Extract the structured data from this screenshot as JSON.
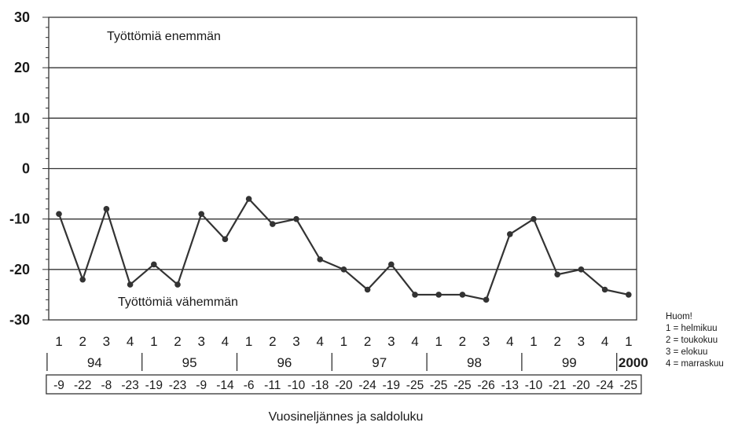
{
  "chart_data": {
    "type": "line",
    "title": "",
    "xlabel": "Vuosineljännes ja saldoluku",
    "ylabel": "",
    "ylim": [
      -30,
      30
    ],
    "yticks": [
      "30",
      "20",
      "10",
      "0",
      "-10",
      "-20",
      "-30"
    ],
    "grid": "horizontal at 20, 10, 0, -10, -20",
    "annotations": {
      "upper": "Työttömiä enemmän",
      "lower": "Työttömiä vähemmän"
    },
    "quarters": [
      "1",
      "2",
      "3",
      "4",
      "1",
      "2",
      "3",
      "4",
      "1",
      "2",
      "3",
      "4",
      "1",
      "2",
      "3",
      "4",
      "1",
      "2",
      "3",
      "4",
      "1",
      "2",
      "3",
      "4",
      "1"
    ],
    "years": [
      "94",
      "95",
      "96",
      "97",
      "98",
      "99",
      "2000"
    ],
    "saldo_labels": [
      "-9",
      "-22",
      "-8",
      "-23",
      "-19",
      "-23",
      "-9",
      "-14",
      "-6",
      "-11",
      "-10",
      "-18",
      "-20",
      "-24",
      "-19",
      "-25",
      "-25",
      "-25",
      "-26",
      "-13",
      "-10",
      "-21",
      "-20",
      "-24",
      "-25"
    ],
    "series": [
      {
        "values": [
          -9,
          -22,
          -8,
          -23,
          -19,
          -23,
          -9,
          -14,
          -6,
          -11,
          -10,
          -18,
          -20,
          -24,
          -19,
          -25,
          -25,
          -25,
          -26,
          -13,
          -10,
          -21,
          -20,
          -24,
          -25
        ]
      }
    ],
    "line_color": "#333333"
  },
  "note": {
    "title": "Huom!",
    "lines": [
      "1 = helmikuu",
      "2 = toukokuu",
      "3 = elokuu",
      "4 = marraskuu"
    ]
  }
}
